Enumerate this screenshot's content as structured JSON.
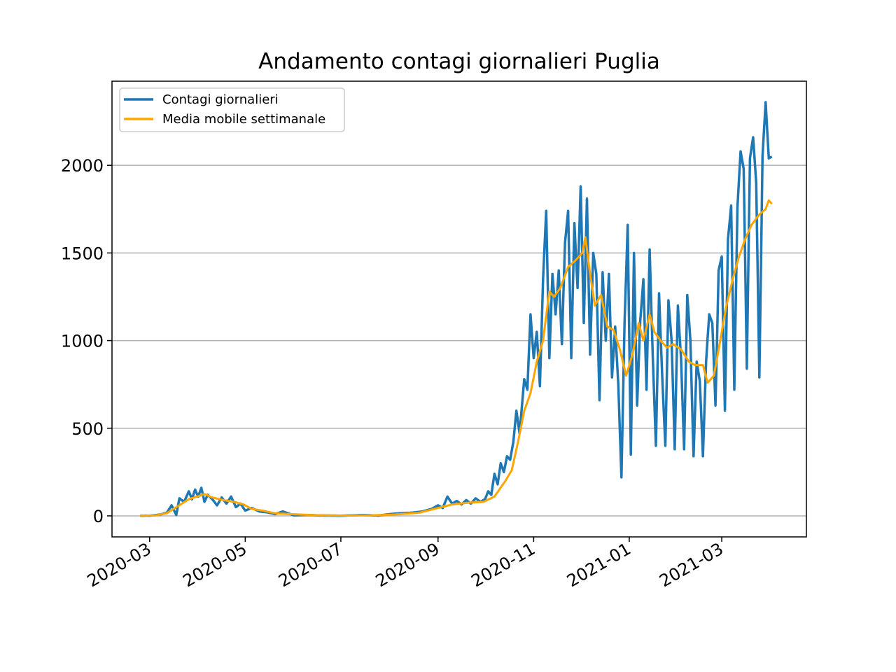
{
  "chart_data": {
    "type": "line",
    "title": "Andamento contagi giornalieri Puglia",
    "xlabel": "",
    "ylabel": "",
    "x_start": "2020-02-24",
    "x_end": "2021-04-02",
    "xlim": [
      "2020-02-06",
      "2021-04-24"
    ],
    "ylim": [
      -120,
      2480
    ],
    "x_ticks": [
      "2020-03",
      "2020-05",
      "2020-07",
      "2020-09",
      "2020-11",
      "2021-01",
      "2021-03"
    ],
    "y_ticks": [
      0,
      500,
      1000,
      1500,
      2000
    ],
    "grid": "horizontal",
    "legend_position": "top-left",
    "series": [
      {
        "name": "Contagi giornalieri",
        "color": "#1f77b4",
        "points": [
          [
            "2020-02-24",
            0
          ],
          [
            "2020-03-01",
            1
          ],
          [
            "2020-03-08",
            8
          ],
          [
            "2020-03-12",
            18
          ],
          [
            "2020-03-15",
            60
          ],
          [
            "2020-03-18",
            5
          ],
          [
            "2020-03-20",
            100
          ],
          [
            "2020-03-23",
            80
          ],
          [
            "2020-03-26",
            140
          ],
          [
            "2020-03-28",
            95
          ],
          [
            "2020-03-30",
            150
          ],
          [
            "2020-04-01",
            110
          ],
          [
            "2020-04-03",
            160
          ],
          [
            "2020-04-05",
            80
          ],
          [
            "2020-04-07",
            120
          ],
          [
            "2020-04-10",
            95
          ],
          [
            "2020-04-13",
            60
          ],
          [
            "2020-04-16",
            105
          ],
          [
            "2020-04-19",
            70
          ],
          [
            "2020-04-22",
            110
          ],
          [
            "2020-04-25",
            50
          ],
          [
            "2020-04-28",
            70
          ],
          [
            "2020-05-01",
            30
          ],
          [
            "2020-05-05",
            45
          ],
          [
            "2020-05-10",
            25
          ],
          [
            "2020-05-15",
            20
          ],
          [
            "2020-05-20",
            10
          ],
          [
            "2020-05-25",
            25
          ],
          [
            "2020-06-01",
            3
          ],
          [
            "2020-06-10",
            5
          ],
          [
            "2020-06-20",
            2
          ],
          [
            "2020-07-01",
            1
          ],
          [
            "2020-07-15",
            5
          ],
          [
            "2020-07-25",
            2
          ],
          [
            "2020-08-01",
            10
          ],
          [
            "2020-08-08",
            15
          ],
          [
            "2020-08-15",
            18
          ],
          [
            "2020-08-22",
            25
          ],
          [
            "2020-08-28",
            40
          ],
          [
            "2020-09-01",
            60
          ],
          [
            "2020-09-04",
            45
          ],
          [
            "2020-09-07",
            110
          ],
          [
            "2020-09-10",
            70
          ],
          [
            "2020-09-13",
            85
          ],
          [
            "2020-09-16",
            65
          ],
          [
            "2020-09-19",
            90
          ],
          [
            "2020-09-22",
            70
          ],
          [
            "2020-09-25",
            100
          ],
          [
            "2020-09-28",
            80
          ],
          [
            "2020-10-01",
            95
          ],
          [
            "2020-10-03",
            140
          ],
          [
            "2020-10-05",
            120
          ],
          [
            "2020-10-07",
            240
          ],
          [
            "2020-10-09",
            180
          ],
          [
            "2020-10-11",
            300
          ],
          [
            "2020-10-13",
            250
          ],
          [
            "2020-10-15",
            340
          ],
          [
            "2020-10-17",
            320
          ],
          [
            "2020-10-19",
            420
          ],
          [
            "2020-10-21",
            600
          ],
          [
            "2020-10-23",
            470
          ],
          [
            "2020-10-26",
            780
          ],
          [
            "2020-10-28",
            720
          ],
          [
            "2020-10-30",
            1150
          ],
          [
            "2020-11-01",
            900
          ],
          [
            "2020-11-03",
            1050
          ],
          [
            "2020-11-05",
            740
          ],
          [
            "2020-11-07",
            1350
          ],
          [
            "2020-11-09",
            1740
          ],
          [
            "2020-11-11",
            900
          ],
          [
            "2020-11-13",
            1380
          ],
          [
            "2020-11-15",
            1150
          ],
          [
            "2020-11-17",
            1400
          ],
          [
            "2020-11-19",
            980
          ],
          [
            "2020-11-21",
            1560
          ],
          [
            "2020-11-23",
            1740
          ],
          [
            "2020-11-25",
            900
          ],
          [
            "2020-11-27",
            1670
          ],
          [
            "2020-11-29",
            1300
          ],
          [
            "2020-12-01",
            1880
          ],
          [
            "2020-12-03",
            1100
          ],
          [
            "2020-12-05",
            1810
          ],
          [
            "2020-12-07",
            920
          ],
          [
            "2020-12-09",
            1500
          ],
          [
            "2020-12-11",
            1380
          ],
          [
            "2020-12-13",
            660
          ],
          [
            "2020-12-15",
            1390
          ],
          [
            "2020-12-17",
            1000
          ],
          [
            "2020-12-19",
            1380
          ],
          [
            "2020-12-21",
            790
          ],
          [
            "2020-12-23",
            1080
          ],
          [
            "2020-12-25",
            750
          ],
          [
            "2020-12-27",
            220
          ],
          [
            "2020-12-29",
            1100
          ],
          [
            "2020-12-31",
            1660
          ],
          [
            "2021-01-02",
            350
          ],
          [
            "2021-01-04",
            1500
          ],
          [
            "2021-01-06",
            630
          ],
          [
            "2021-01-08",
            1110
          ],
          [
            "2021-01-10",
            1350
          ],
          [
            "2021-01-12",
            720
          ],
          [
            "2021-01-14",
            1520
          ],
          [
            "2021-01-16",
            900
          ],
          [
            "2021-01-18",
            400
          ],
          [
            "2021-01-20",
            1270
          ],
          [
            "2021-01-22",
            800
          ],
          [
            "2021-01-24",
            400
          ],
          [
            "2021-01-26",
            1230
          ],
          [
            "2021-01-28",
            1000
          ],
          [
            "2021-01-30",
            380
          ],
          [
            "2021-02-01",
            1200
          ],
          [
            "2021-02-03",
            900
          ],
          [
            "2021-02-05",
            380
          ],
          [
            "2021-02-07",
            1260
          ],
          [
            "2021-02-09",
            1000
          ],
          [
            "2021-02-11",
            340
          ],
          [
            "2021-02-13",
            880
          ],
          [
            "2021-02-15",
            770
          ],
          [
            "2021-02-17",
            340
          ],
          [
            "2021-02-19",
            880
          ],
          [
            "2021-02-21",
            1150
          ],
          [
            "2021-02-23",
            1100
          ],
          [
            "2021-02-25",
            630
          ],
          [
            "2021-02-27",
            1400
          ],
          [
            "2021-03-01",
            1480
          ],
          [
            "2021-03-03",
            600
          ],
          [
            "2021-03-05",
            1580
          ],
          [
            "2021-03-07",
            1770
          ],
          [
            "2021-03-09",
            720
          ],
          [
            "2021-03-11",
            1760
          ],
          [
            "2021-03-13",
            2080
          ],
          [
            "2021-03-15",
            1980
          ],
          [
            "2021-03-17",
            840
          ],
          [
            "2021-03-19",
            2040
          ],
          [
            "2021-03-21",
            2160
          ],
          [
            "2021-03-23",
            1900
          ],
          [
            "2021-03-25",
            790
          ],
          [
            "2021-03-27",
            2050
          ],
          [
            "2021-03-29",
            2360
          ],
          [
            "2021-03-31",
            2040
          ],
          [
            "2021-04-02",
            2050
          ]
        ]
      },
      {
        "name": "Media mobile settimanale",
        "color": "#ffa500",
        "points": [
          [
            "2020-02-24",
            0
          ],
          [
            "2020-03-05",
            3
          ],
          [
            "2020-03-12",
            15
          ],
          [
            "2020-03-19",
            55
          ],
          [
            "2020-03-26",
            95
          ],
          [
            "2020-04-02",
            115
          ],
          [
            "2020-04-05",
            125
          ],
          [
            "2020-04-10",
            105
          ],
          [
            "2020-04-17",
            90
          ],
          [
            "2020-04-24",
            80
          ],
          [
            "2020-04-30",
            65
          ],
          [
            "2020-05-05",
            40
          ],
          [
            "2020-05-12",
            30
          ],
          [
            "2020-05-20",
            15
          ],
          [
            "2020-05-30",
            10
          ],
          [
            "2020-06-15",
            4
          ],
          [
            "2020-07-01",
            2
          ],
          [
            "2020-07-20",
            3
          ],
          [
            "2020-08-05",
            8
          ],
          [
            "2020-08-20",
            18
          ],
          [
            "2020-09-01",
            45
          ],
          [
            "2020-09-10",
            65
          ],
          [
            "2020-09-20",
            75
          ],
          [
            "2020-09-30",
            80
          ],
          [
            "2020-10-07",
            110
          ],
          [
            "2020-10-14",
            200
          ],
          [
            "2020-10-18",
            260
          ],
          [
            "2020-10-22",
            420
          ],
          [
            "2020-10-26",
            600
          ],
          [
            "2020-10-30",
            700
          ],
          [
            "2020-11-03",
            880
          ],
          [
            "2020-11-07",
            1000
          ],
          [
            "2020-11-11",
            1280
          ],
          [
            "2020-11-14",
            1250
          ],
          [
            "2020-11-18",
            1300
          ],
          [
            "2020-11-23",
            1420
          ],
          [
            "2020-11-28",
            1460
          ],
          [
            "2020-12-02",
            1500
          ],
          [
            "2020-12-04",
            1590
          ],
          [
            "2020-12-07",
            1380
          ],
          [
            "2020-12-10",
            1200
          ],
          [
            "2020-12-14",
            1260
          ],
          [
            "2020-12-18",
            1080
          ],
          [
            "2020-12-22",
            1060
          ],
          [
            "2020-12-26",
            950
          ],
          [
            "2020-12-30",
            800
          ],
          [
            "2021-01-03",
            920
          ],
          [
            "2021-01-07",
            1100
          ],
          [
            "2021-01-10",
            1000
          ],
          [
            "2021-01-14",
            1150
          ],
          [
            "2021-01-17",
            1050
          ],
          [
            "2021-01-21",
            1000
          ],
          [
            "2021-01-25",
            960
          ],
          [
            "2021-01-29",
            980
          ],
          [
            "2021-02-03",
            950
          ],
          [
            "2021-02-08",
            880
          ],
          [
            "2021-02-12",
            860
          ],
          [
            "2021-02-17",
            860
          ],
          [
            "2021-02-20",
            760
          ],
          [
            "2021-02-24",
            800
          ],
          [
            "2021-02-28",
            1000
          ],
          [
            "2021-03-04",
            1200
          ],
          [
            "2021-03-08",
            1350
          ],
          [
            "2021-03-12",
            1480
          ],
          [
            "2021-03-16",
            1580
          ],
          [
            "2021-03-20",
            1660
          ],
          [
            "2021-03-25",
            1720
          ],
          [
            "2021-03-29",
            1750
          ],
          [
            "2021-03-31",
            1800
          ],
          [
            "2021-04-02",
            1780
          ]
        ]
      }
    ]
  }
}
